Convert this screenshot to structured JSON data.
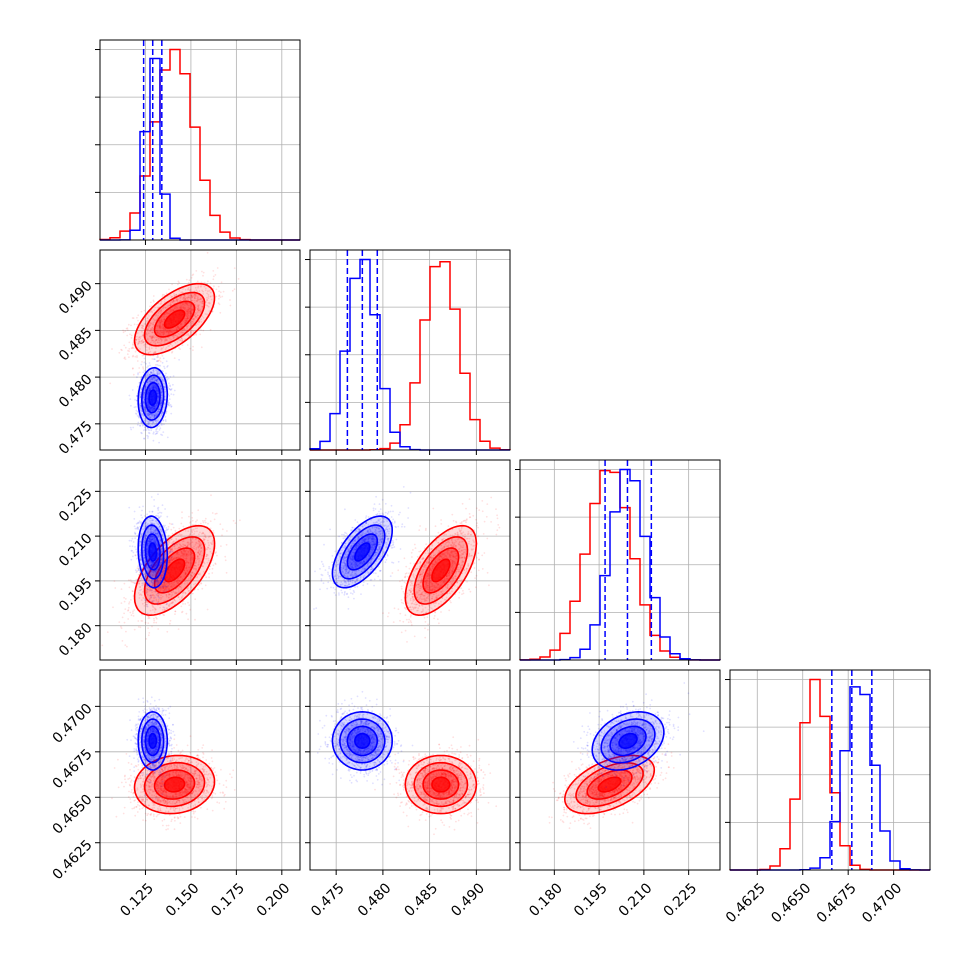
{
  "chart_data": {
    "type": "corner",
    "title": "",
    "parameters": [
      {
        "index": 0,
        "range": [
          0.1,
          0.21
        ],
        "ticks": [
          0.125,
          0.15,
          0.175,
          0.2
        ],
        "tick_labels": [
          "0.125",
          "0.150",
          "0.175",
          "0.200"
        ]
      },
      {
        "index": 1,
        "range": [
          0.4722,
          0.4936
        ],
        "ticks": [
          0.475,
          0.48,
          0.485,
          0.49
        ],
        "tick_labels": [
          "0.475",
          "0.480",
          "0.485",
          "0.490"
        ]
      },
      {
        "index": 2,
        "range": [
          0.1685,
          0.2355
        ],
        "ticks": [
          0.18,
          0.195,
          0.21,
          0.225
        ],
        "tick_labels": [
          "0.180",
          "0.195",
          "0.210",
          "0.225"
        ]
      },
      {
        "index": 3,
        "range": [
          0.461,
          0.472
        ],
        "ticks": [
          0.4625,
          0.465,
          0.4675,
          0.47
        ],
        "tick_labels": [
          "0.4625",
          "0.4650",
          "0.4675",
          "0.4700"
        ]
      }
    ],
    "grid": true,
    "legend": "none",
    "series": [
      {
        "color": "#ff0000",
        "means": [
          0.141,
          0.4862,
          0.1985,
          0.4657
        ],
        "stds": [
          0.011,
          0.0019,
          0.0075,
          0.0008
        ],
        "correlations": {
          "0-1": 0.6,
          "0-2": 0.6,
          "0-3": 0.1,
          "1-2": 0.6,
          "1-3": 0.0,
          "2-3": 0.5
        },
        "quantile_lines": []
      },
      {
        "color": "#0000ff",
        "means": [
          0.129,
          0.4778,
          0.2047,
          0.4681
        ],
        "stds": [
          0.004,
          0.0016,
          0.006,
          0.0008
        ],
        "correlations": {
          "0-1": 0.1,
          "0-2": -0.1,
          "0-3": 0.0,
          "1-2": 0.6,
          "1-3": 0.0,
          "2-3": 0.3
        },
        "quantile_lines": [
          [
            0.124,
            0.129,
            0.134
          ],
          [
            0.4762,
            0.4778,
            0.4794
          ],
          [
            0.197,
            0.2045,
            0.2125
          ],
          [
            0.4666,
            0.4677,
            0.4688
          ]
        ]
      }
    ]
  }
}
